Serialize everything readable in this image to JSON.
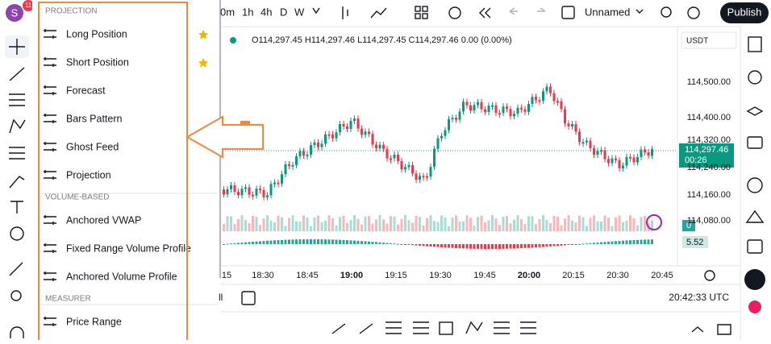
{
  "avatar": {
    "initial": "S",
    "badge": "11"
  },
  "top_bar": {
    "intervals": [
      "0m",
      "1h",
      "4h",
      "D",
      "W"
    ],
    "layout_name": "Unnamed",
    "publish": "Publish"
  },
  "legend": "O114,297.45 H114,297.46 L114,297.45 C114,297.46 0.00 (0.00%)",
  "price_scale": {
    "currency": "USDT",
    "labels": [
      "114,500.00",
      "114,400.00",
      "114,320.00",
      "114,240.00",
      "114,160.00",
      "114,080.00"
    ],
    "last_price": "114,297.46",
    "countdown": "00:26",
    "volume_label": "0",
    "indicator_value": "5.52"
  },
  "time_axis": [
    "15",
    "18:30",
    "18:45",
    "19:00",
    "19:15",
    "19:30",
    "19:45",
    "20:00",
    "20:15",
    "20:30",
    "20:45"
  ],
  "bottom_bar": {
    "range": "ll",
    "clock": "20:42:33 UTC"
  },
  "menu": {
    "sections": [
      {
        "title": "PROJECTION",
        "items": [
          "Long Position",
          "Short Position",
          "Forecast",
          "Bars Pattern",
          "Ghost Feed",
          "Projection"
        ]
      },
      {
        "title": "VOLUME-BASED",
        "items": [
          "Anchored VWAP",
          "Fixed Range Volume Profile",
          "Anchored Volume Profile"
        ]
      },
      {
        "title": "MEASURER",
        "items": [
          "Price Range"
        ]
      }
    ]
  }
}
